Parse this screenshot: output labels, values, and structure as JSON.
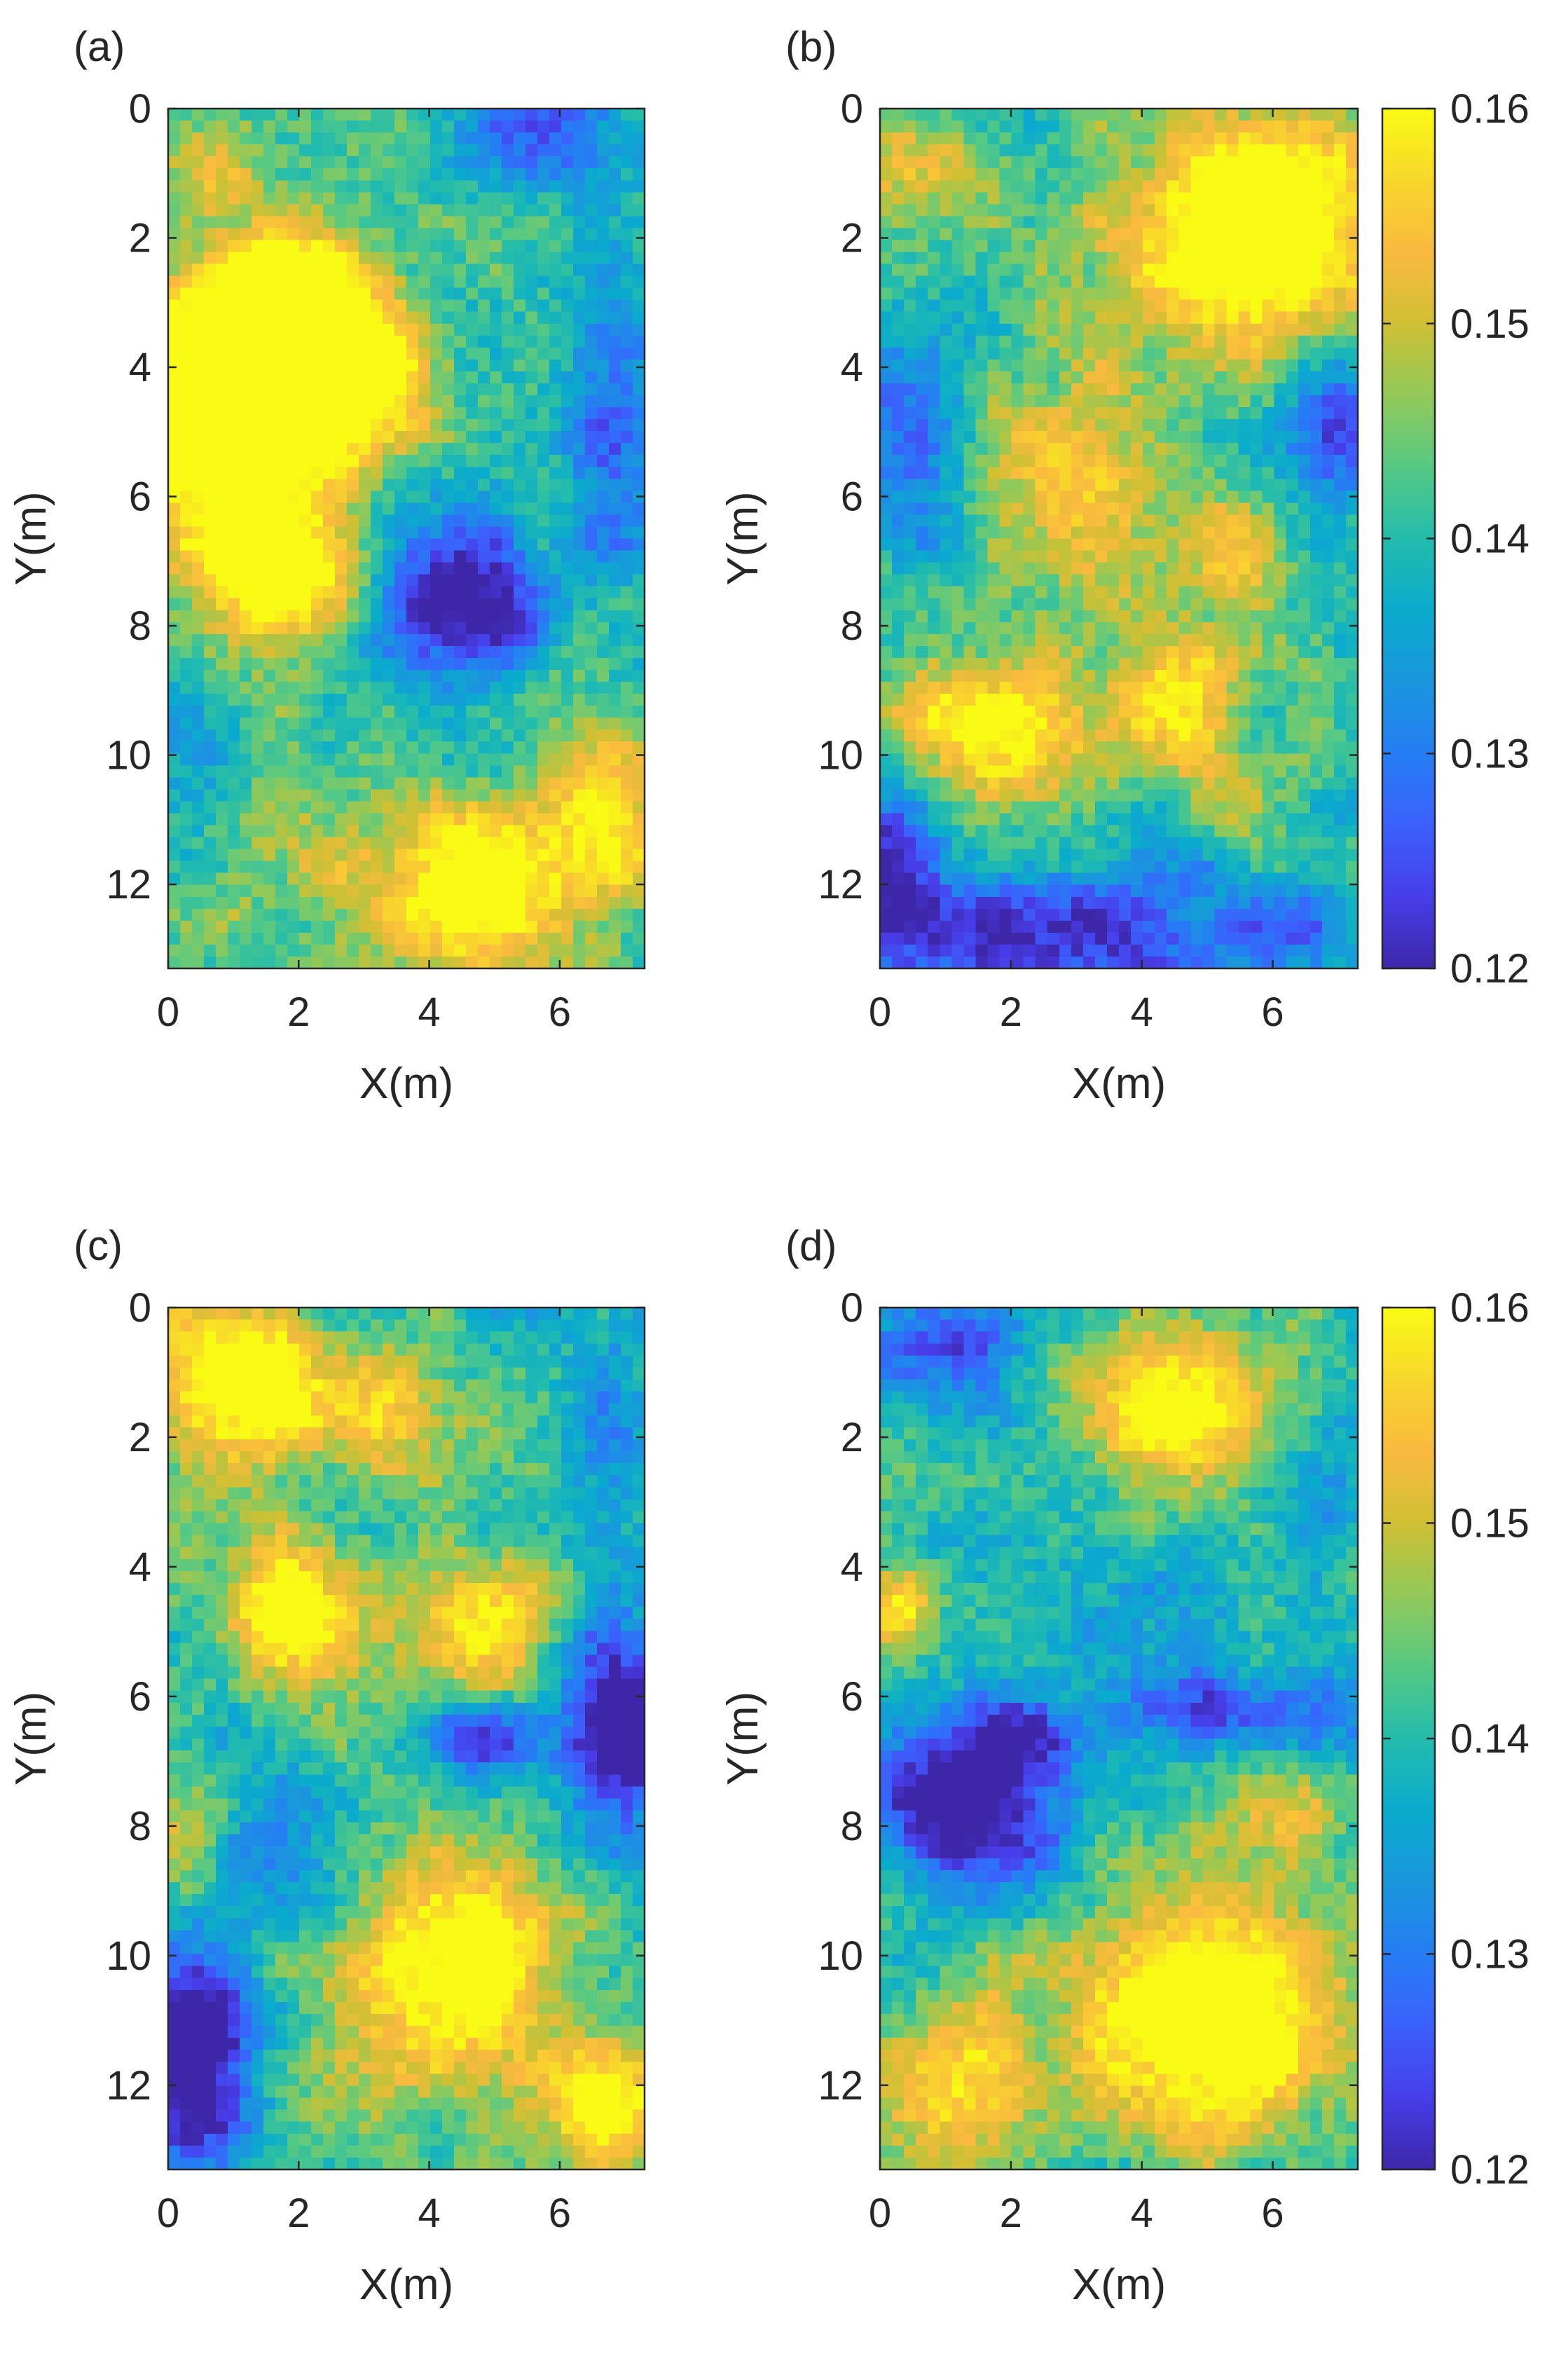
{
  "chart_data": [
    {
      "id": "a",
      "panel_label": "(a)",
      "type": "heatmap",
      "title": "",
      "xlabel": "X(m)",
      "ylabel": "Y(m)",
      "xlim": [
        0,
        7.3
      ],
      "ylim": [
        0,
        13.3
      ],
      "y_direction": "reversed",
      "xticks": [
        "0",
        "2",
        "4",
        "6"
      ],
      "yticks": [
        "0",
        "2",
        "4",
        "6",
        "8",
        "10",
        "12"
      ],
      "grid_cells": [
        40,
        72
      ],
      "seed": 11,
      "colorbar": false,
      "features": [
        {
          "x": 0.2,
          "y": 4.8,
          "rx": 1.5,
          "ry": 1.6,
          "v": 0.03
        },
        {
          "x": 1.8,
          "y": 4.2,
          "rx": 1.5,
          "ry": 1.7,
          "v": 0.03
        },
        {
          "x": 1.6,
          "y": 7.2,
          "rx": 1.3,
          "ry": 1.0,
          "v": 0.028
        },
        {
          "x": 1.6,
          "y": 2.8,
          "rx": 1.1,
          "ry": 0.9,
          "v": 0.022
        },
        {
          "x": 3.2,
          "y": 4.0,
          "rx": 1.0,
          "ry": 1.1,
          "v": 0.018
        },
        {
          "x": 4.4,
          "y": 7.6,
          "rx": 1.3,
          "ry": 1.3,
          "v": -0.022
        },
        {
          "x": 5.3,
          "y": 8.0,
          "rx": 0.6,
          "ry": 0.6,
          "v": -0.01
        },
        {
          "x": 5.8,
          "y": 0.2,
          "rx": 1.1,
          "ry": 0.9,
          "v": -0.015
        },
        {
          "x": 6.8,
          "y": 5.0,
          "rx": 0.8,
          "ry": 2.5,
          "v": -0.015
        },
        {
          "x": 4.6,
          "y": 12.1,
          "rx": 1.5,
          "ry": 1.3,
          "v": 0.026
        },
        {
          "x": 6.8,
          "y": 10.8,
          "rx": 0.9,
          "ry": 1.6,
          "v": 0.018
        },
        {
          "x": 1.9,
          "y": 11.5,
          "rx": 1.3,
          "ry": 1.4,
          "v": 0.008
        },
        {
          "x": 0.5,
          "y": 10.5,
          "rx": 1.0,
          "ry": 1.4,
          "v": -0.008
        },
        {
          "x": 0.6,
          "y": 1.0,
          "rx": 0.8,
          "ry": 0.8,
          "v": 0.01
        }
      ]
    },
    {
      "id": "b",
      "panel_label": "(b)",
      "type": "heatmap",
      "title": "",
      "xlabel": "X(m)",
      "ylabel": "Y(m)",
      "xlim": [
        0,
        7.3
      ],
      "ylim": [
        0,
        13.3
      ],
      "y_direction": "reversed",
      "xticks": [
        "0",
        "2",
        "4",
        "6"
      ],
      "yticks": [
        "0",
        "2",
        "4",
        "6",
        "8",
        "10",
        "12"
      ],
      "grid_cells": [
        40,
        72
      ],
      "seed": 27,
      "colorbar": true,
      "features": [
        {
          "x": 5.7,
          "y": 1.8,
          "rx": 2.0,
          "ry": 1.8,
          "v": 0.03
        },
        {
          "x": 0.5,
          "y": 0.8,
          "rx": 1.2,
          "ry": 0.9,
          "v": 0.012
        },
        {
          "x": 3.0,
          "y": 6.0,
          "rx": 1.6,
          "ry": 2.0,
          "v": 0.014
        },
        {
          "x": 1.8,
          "y": 9.7,
          "rx": 1.4,
          "ry": 1.1,
          "v": 0.024
        },
        {
          "x": 4.5,
          "y": 9.2,
          "rx": 1.0,
          "ry": 1.0,
          "v": 0.018
        },
        {
          "x": 5.4,
          "y": 6.8,
          "rx": 0.8,
          "ry": 0.8,
          "v": 0.016
        },
        {
          "x": 5.6,
          "y": 10.8,
          "rx": 0.7,
          "ry": 0.7,
          "v": 0.01
        },
        {
          "x": 0.4,
          "y": 5.5,
          "rx": 1.0,
          "ry": 1.8,
          "v": -0.012
        },
        {
          "x": 7.0,
          "y": 5.0,
          "rx": 0.8,
          "ry": 1.2,
          "v": -0.015
        },
        {
          "x": 2.5,
          "y": 12.8,
          "rx": 3.0,
          "ry": 1.2,
          "v": -0.02
        },
        {
          "x": 0.2,
          "y": 11.6,
          "rx": 0.7,
          "ry": 1.2,
          "v": -0.016
        },
        {
          "x": 6.3,
          "y": 12.6,
          "rx": 1.2,
          "ry": 1.0,
          "v": -0.008
        }
      ]
    },
    {
      "id": "c",
      "panel_label": "(c)",
      "type": "heatmap",
      "title": "",
      "xlabel": "X(m)",
      "ylabel": "Y(m)",
      "xlim": [
        0,
        7.3
      ],
      "ylim": [
        0,
        13.3
      ],
      "y_direction": "reversed",
      "xticks": [
        "0",
        "2",
        "4",
        "6"
      ],
      "yticks": [
        "0",
        "2",
        "4",
        "6",
        "8",
        "10",
        "12"
      ],
      "grid_cells": [
        40,
        72
      ],
      "seed": 43,
      "colorbar": false,
      "features": [
        {
          "x": 1.0,
          "y": 1.2,
          "rx": 1.3,
          "ry": 1.3,
          "v": 0.026
        },
        {
          "x": 3.2,
          "y": 1.5,
          "rx": 1.2,
          "ry": 1.0,
          "v": 0.014
        },
        {
          "x": 1.9,
          "y": 4.6,
          "rx": 1.0,
          "ry": 1.0,
          "v": 0.024
        },
        {
          "x": 5.0,
          "y": 4.8,
          "rx": 0.9,
          "ry": 1.0,
          "v": 0.02
        },
        {
          "x": 4.7,
          "y": 6.6,
          "rx": 0.8,
          "ry": 0.6,
          "v": -0.02
        },
        {
          "x": 6.9,
          "y": 6.6,
          "rx": 0.8,
          "ry": 1.6,
          "v": -0.028
        },
        {
          "x": 6.8,
          "y": 1.8,
          "rx": 0.8,
          "ry": 1.8,
          "v": -0.012
        },
        {
          "x": 4.4,
          "y": 10.0,
          "rx": 1.6,
          "ry": 1.7,
          "v": 0.026
        },
        {
          "x": 6.7,
          "y": 12.3,
          "rx": 0.9,
          "ry": 1.0,
          "v": 0.022
        },
        {
          "x": 0.4,
          "y": 11.5,
          "rx": 0.9,
          "ry": 1.8,
          "v": -0.03
        },
        {
          "x": 1.8,
          "y": 8.4,
          "rx": 1.2,
          "ry": 1.2,
          "v": -0.008
        },
        {
          "x": 0.3,
          "y": 8.4,
          "rx": 0.6,
          "ry": 0.9,
          "v": 0.01
        }
      ]
    },
    {
      "id": "d",
      "panel_label": "(d)",
      "type": "heatmap",
      "title": "",
      "xlabel": "X(m)",
      "ylabel": "Y(m)",
      "xlim": [
        0,
        7.3
      ],
      "ylim": [
        0,
        13.3
      ],
      "y_direction": "reversed",
      "xticks": [
        "0",
        "2",
        "4",
        "6"
      ],
      "yticks": [
        "0",
        "2",
        "4",
        "6",
        "8",
        "10",
        "12"
      ],
      "grid_cells": [
        40,
        72
      ],
      "seed": 59,
      "colorbar": true,
      "features": [
        {
          "x": 1.0,
          "y": 0.6,
          "rx": 1.0,
          "ry": 0.8,
          "v": -0.018
        },
        {
          "x": 4.5,
          "y": 1.6,
          "rx": 1.4,
          "ry": 1.3,
          "v": 0.024
        },
        {
          "x": 6.8,
          "y": 2.5,
          "rx": 0.8,
          "ry": 1.3,
          "v": -0.01
        },
        {
          "x": 0.3,
          "y": 4.6,
          "rx": 0.5,
          "ry": 0.6,
          "v": 0.02
        },
        {
          "x": 1.4,
          "y": 7.6,
          "rx": 1.5,
          "ry": 1.3,
          "v": -0.026
        },
        {
          "x": 2.2,
          "y": 6.5,
          "rx": 0.7,
          "ry": 0.6,
          "v": -0.01
        },
        {
          "x": 5.4,
          "y": 6.2,
          "rx": 1.9,
          "ry": 0.6,
          "v": -0.016
        },
        {
          "x": 5.1,
          "y": 11.0,
          "rx": 1.9,
          "ry": 1.6,
          "v": 0.032
        },
        {
          "x": 1.2,
          "y": 11.7,
          "rx": 1.2,
          "ry": 1.3,
          "v": 0.016
        },
        {
          "x": 6.0,
          "y": 8.0,
          "rx": 1.0,
          "ry": 0.9,
          "v": 0.01
        },
        {
          "x": 3.0,
          "y": 4.0,
          "rx": 1.5,
          "ry": 1.5,
          "v": -0.006
        }
      ]
    }
  ],
  "colorbar": {
    "colormap": "parula",
    "range": [
      0.12,
      0.16
    ],
    "ticks": [
      "0.16",
      "0.15",
      "0.14",
      "0.13",
      "0.12"
    ],
    "tick_values": [
      0.16,
      0.15,
      0.14,
      0.13,
      0.12
    ]
  }
}
